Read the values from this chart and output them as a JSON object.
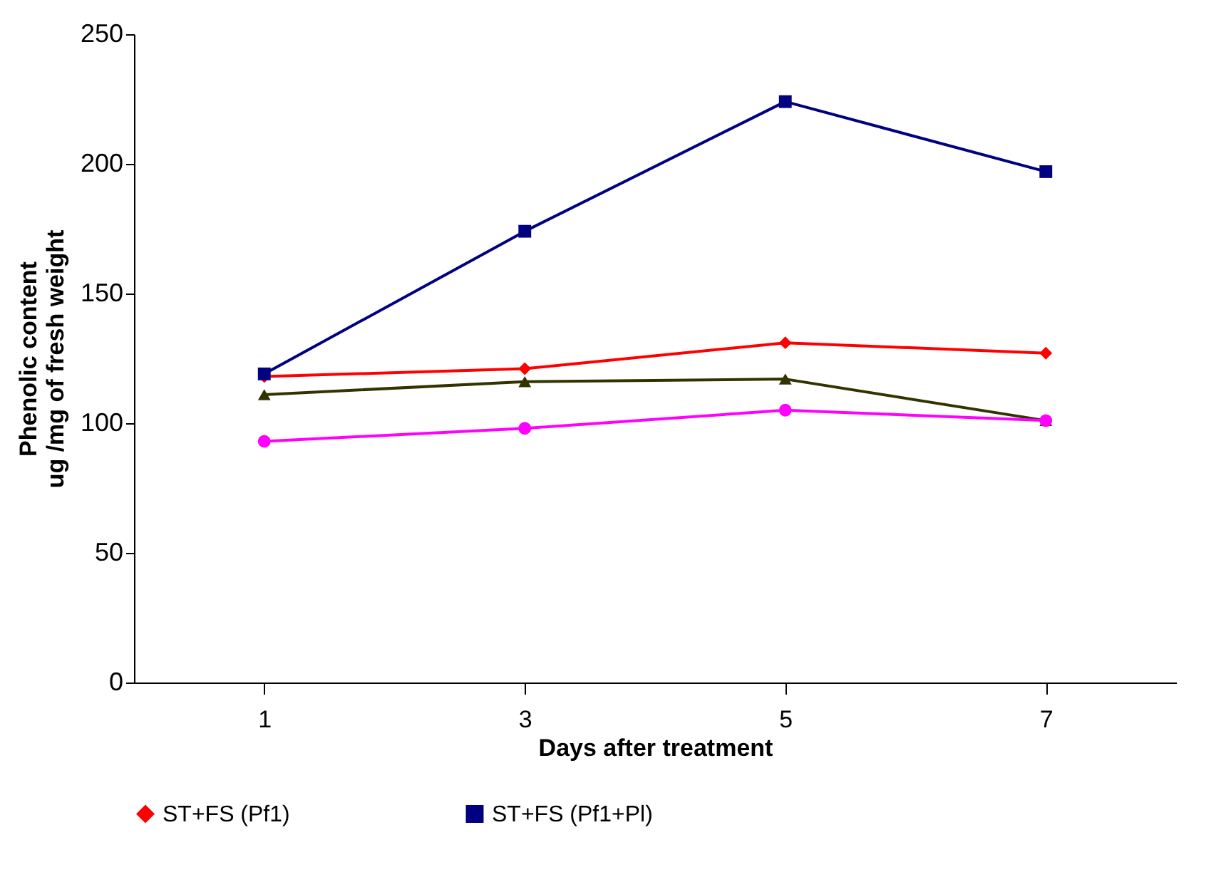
{
  "chart_data": {
    "type": "line",
    "xlabel": "Days after treatment",
    "ylabel": "Phenolic content\nug /mg of  fresh weight",
    "categories": [
      "1",
      "3",
      "5",
      "7"
    ],
    "ylim": [
      0,
      250
    ],
    "yticks": [
      0,
      50,
      100,
      150,
      200,
      250
    ],
    "grid": false,
    "legend": "bottom",
    "series": [
      {
        "name": "ST+FS (Pf1)",
        "color": "#ff0000",
        "marker": "diamond",
        "values": [
          118,
          121,
          131,
          127
        ]
      },
      {
        "name": "ST+FS (Pf1+Pl)",
        "color": "#000080",
        "marker": "square",
        "values": [
          119,
          174,
          224,
          197
        ]
      },
      {
        "color": "#333300",
        "marker": "triangle",
        "values": [
          111,
          116,
          117,
          101
        ]
      },
      {
        "color": "#ff00ff",
        "marker": "circle",
        "values": [
          93,
          98,
          105,
          101
        ]
      }
    ]
  }
}
